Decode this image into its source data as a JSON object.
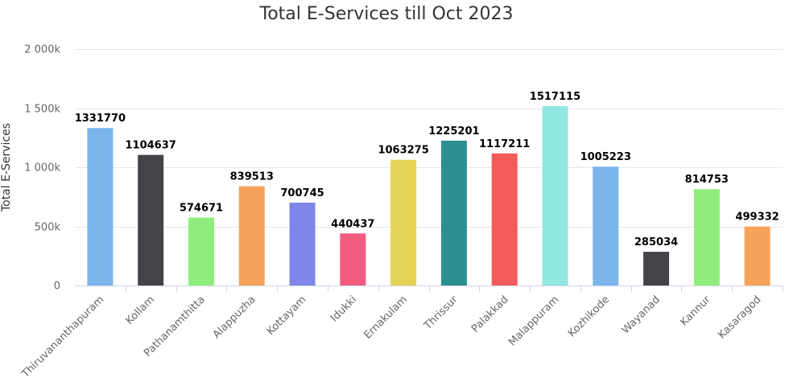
{
  "chart_data": {
    "type": "bar",
    "title": "Total E-Services till Oct 2023",
    "xlabel": "",
    "ylabel": "Total E-Services",
    "ylim": [
      0,
      2000000
    ],
    "yticks": [
      0,
      500000,
      1000000,
      1500000,
      2000000
    ],
    "ytick_labels": [
      "0",
      "500k",
      "1 000k",
      "1 500k",
      "2 000k"
    ],
    "grid": true,
    "legend": "none",
    "categories": [
      "Thiruvananthapuram",
      "Kollam",
      "Pathanamthitta",
      "Alappuzha",
      "Kottayam",
      "Idukki",
      "Ernakulam",
      "Thrissur",
      "Palakkad",
      "Malappuram",
      "Kozhikode",
      "Wayanad",
      "Kannur",
      "Kasaragod"
    ],
    "values": [
      1331770,
      1104637,
      574671,
      839513,
      700745,
      440437,
      1063275,
      1225201,
      1117211,
      1517115,
      1005223,
      285034,
      814753,
      499332
    ],
    "colors": [
      "#7cb5ec",
      "#434348",
      "#90ed7d",
      "#f7a35c",
      "#8085e9",
      "#f15c80",
      "#e4d354",
      "#2b908f",
      "#f45b5b",
      "#91e8e1",
      "#7cb5ec",
      "#434348",
      "#90ed7d",
      "#f7a35c"
    ]
  }
}
